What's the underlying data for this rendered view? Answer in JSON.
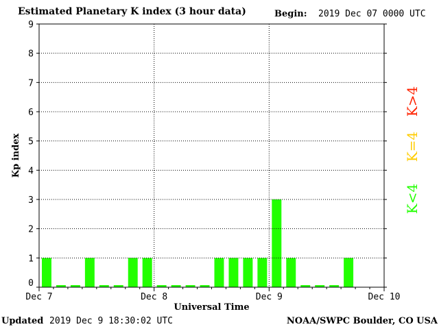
{
  "header": {
    "title": "Estimated Planetary K index (3 hour data)",
    "begin_label": "Begin:",
    "begin_value": "2019 Dec 07 0000 UTC"
  },
  "footer": {
    "updated_label": "Updated",
    "updated_value": "2019 Dec  9 18:30:02 UTC",
    "credit": "NOAA/SWPC Boulder, CO USA"
  },
  "chart_data": {
    "type": "bar",
    "title": "Estimated Planetary K index (3 hour data)",
    "xlabel": "Universal Time",
    "ylabel": "Kp index",
    "ylim": [
      0,
      9
    ],
    "yticks": [
      0,
      1,
      2,
      3,
      4,
      5,
      6,
      7,
      8,
      9
    ],
    "x_tick_labels": [
      "Dec 7",
      "Dec 8",
      "Dec 9",
      "Dec 10"
    ],
    "grid": true,
    "interval_hours": 3,
    "values": [
      1,
      0,
      0,
      1,
      0,
      0,
      1,
      1,
      0,
      0,
      0,
      0,
      1,
      1,
      1,
      1,
      3,
      1,
      0,
      0,
      0,
      1
    ],
    "bar_color": "#22ff00",
    "legend": [
      {
        "label": "K<4",
        "color": "#22ff00"
      },
      {
        "label": "K=4",
        "color": "#ffcc00"
      },
      {
        "label": "K>4",
        "color": "#ff2200"
      }
    ],
    "legend_position": "right"
  }
}
